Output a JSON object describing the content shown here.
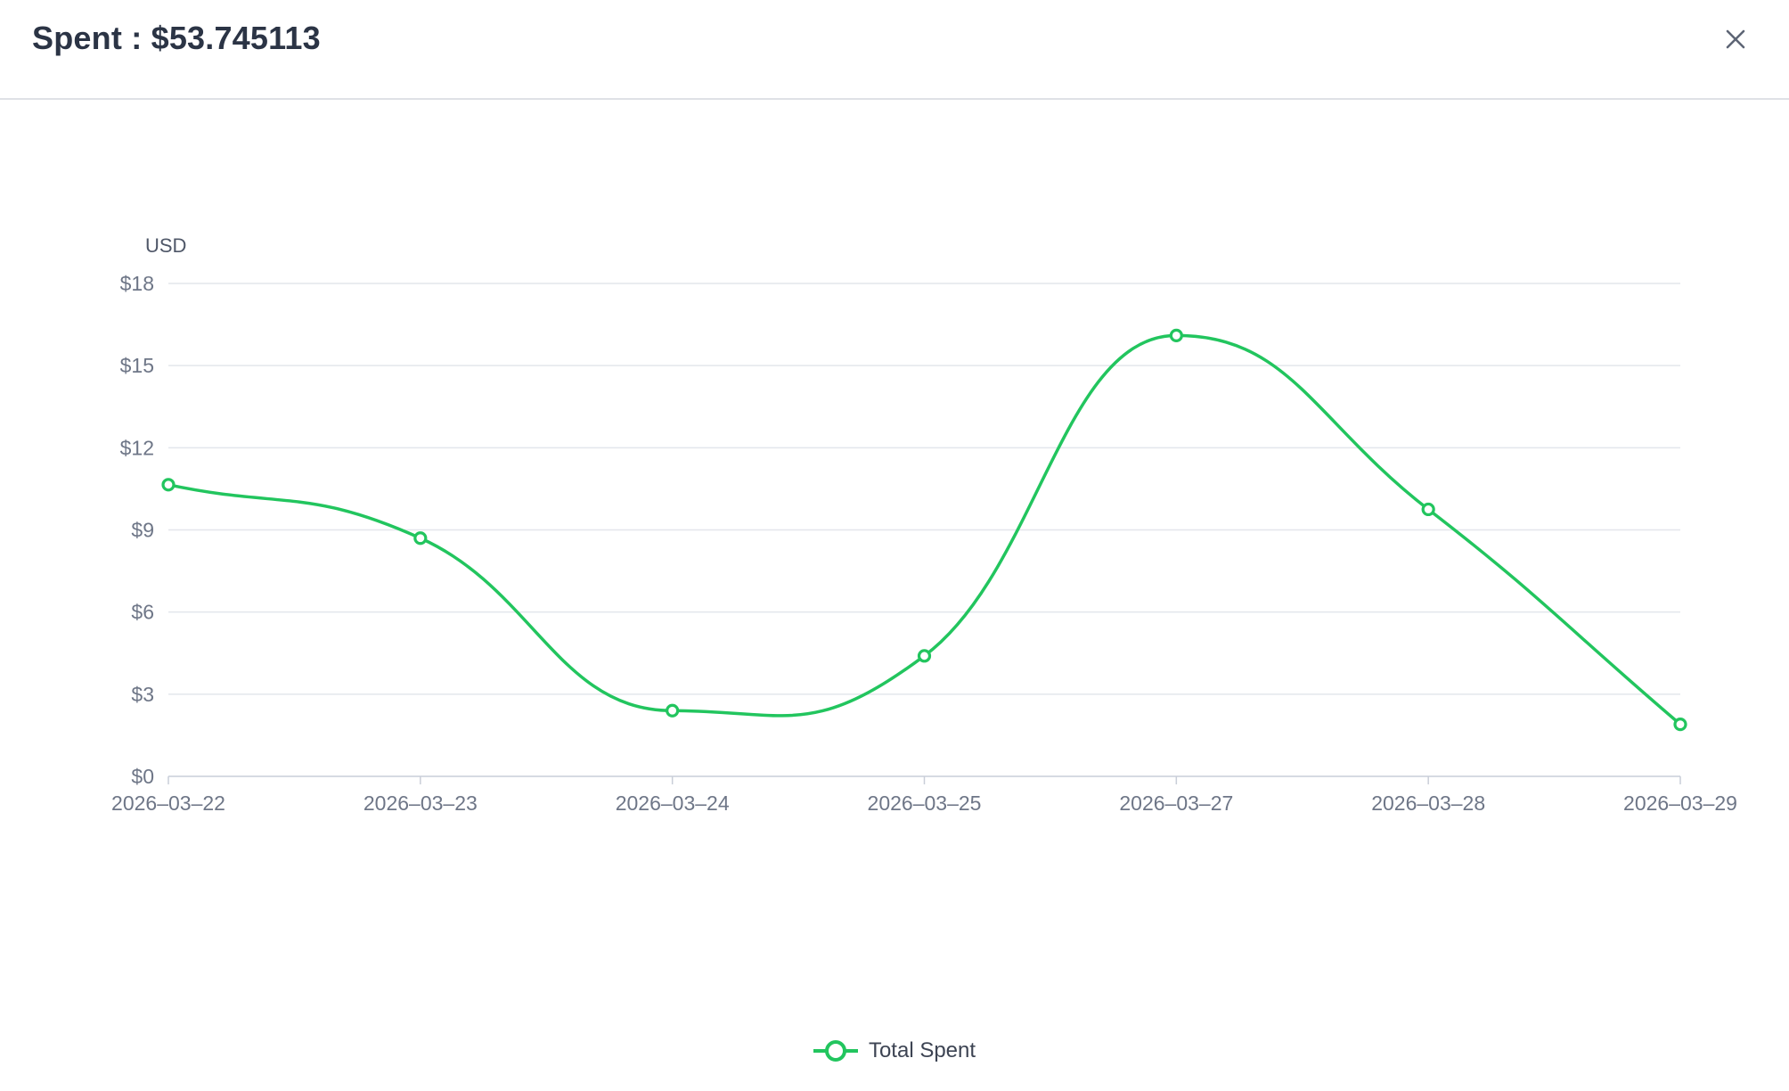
{
  "modal": {
    "title": "Spent : $53.745113",
    "close_icon": "close-icon"
  },
  "chart_data": {
    "type": "line",
    "smooth": true,
    "ylabel": "USD",
    "ylim": [
      0,
      18
    ],
    "yticks": [
      0,
      3,
      6,
      9,
      12,
      15,
      18
    ],
    "ytick_labels": [
      "$0",
      "$3",
      "$6",
      "$9",
      "$12",
      "$15",
      "$18"
    ],
    "categories": [
      "2026–03–22",
      "2026–03–23",
      "2026–03–24",
      "2026–03–25",
      "2026–03–27",
      "2026–03–28",
      "2026–03–29"
    ],
    "series": [
      {
        "name": "Total Spent",
        "color": "#22c55e",
        "values": [
          10.65,
          8.7,
          2.4,
          4.4,
          16.1,
          9.75,
          1.9
        ]
      }
    ],
    "grid": true,
    "legend_position": "bottom-center"
  }
}
